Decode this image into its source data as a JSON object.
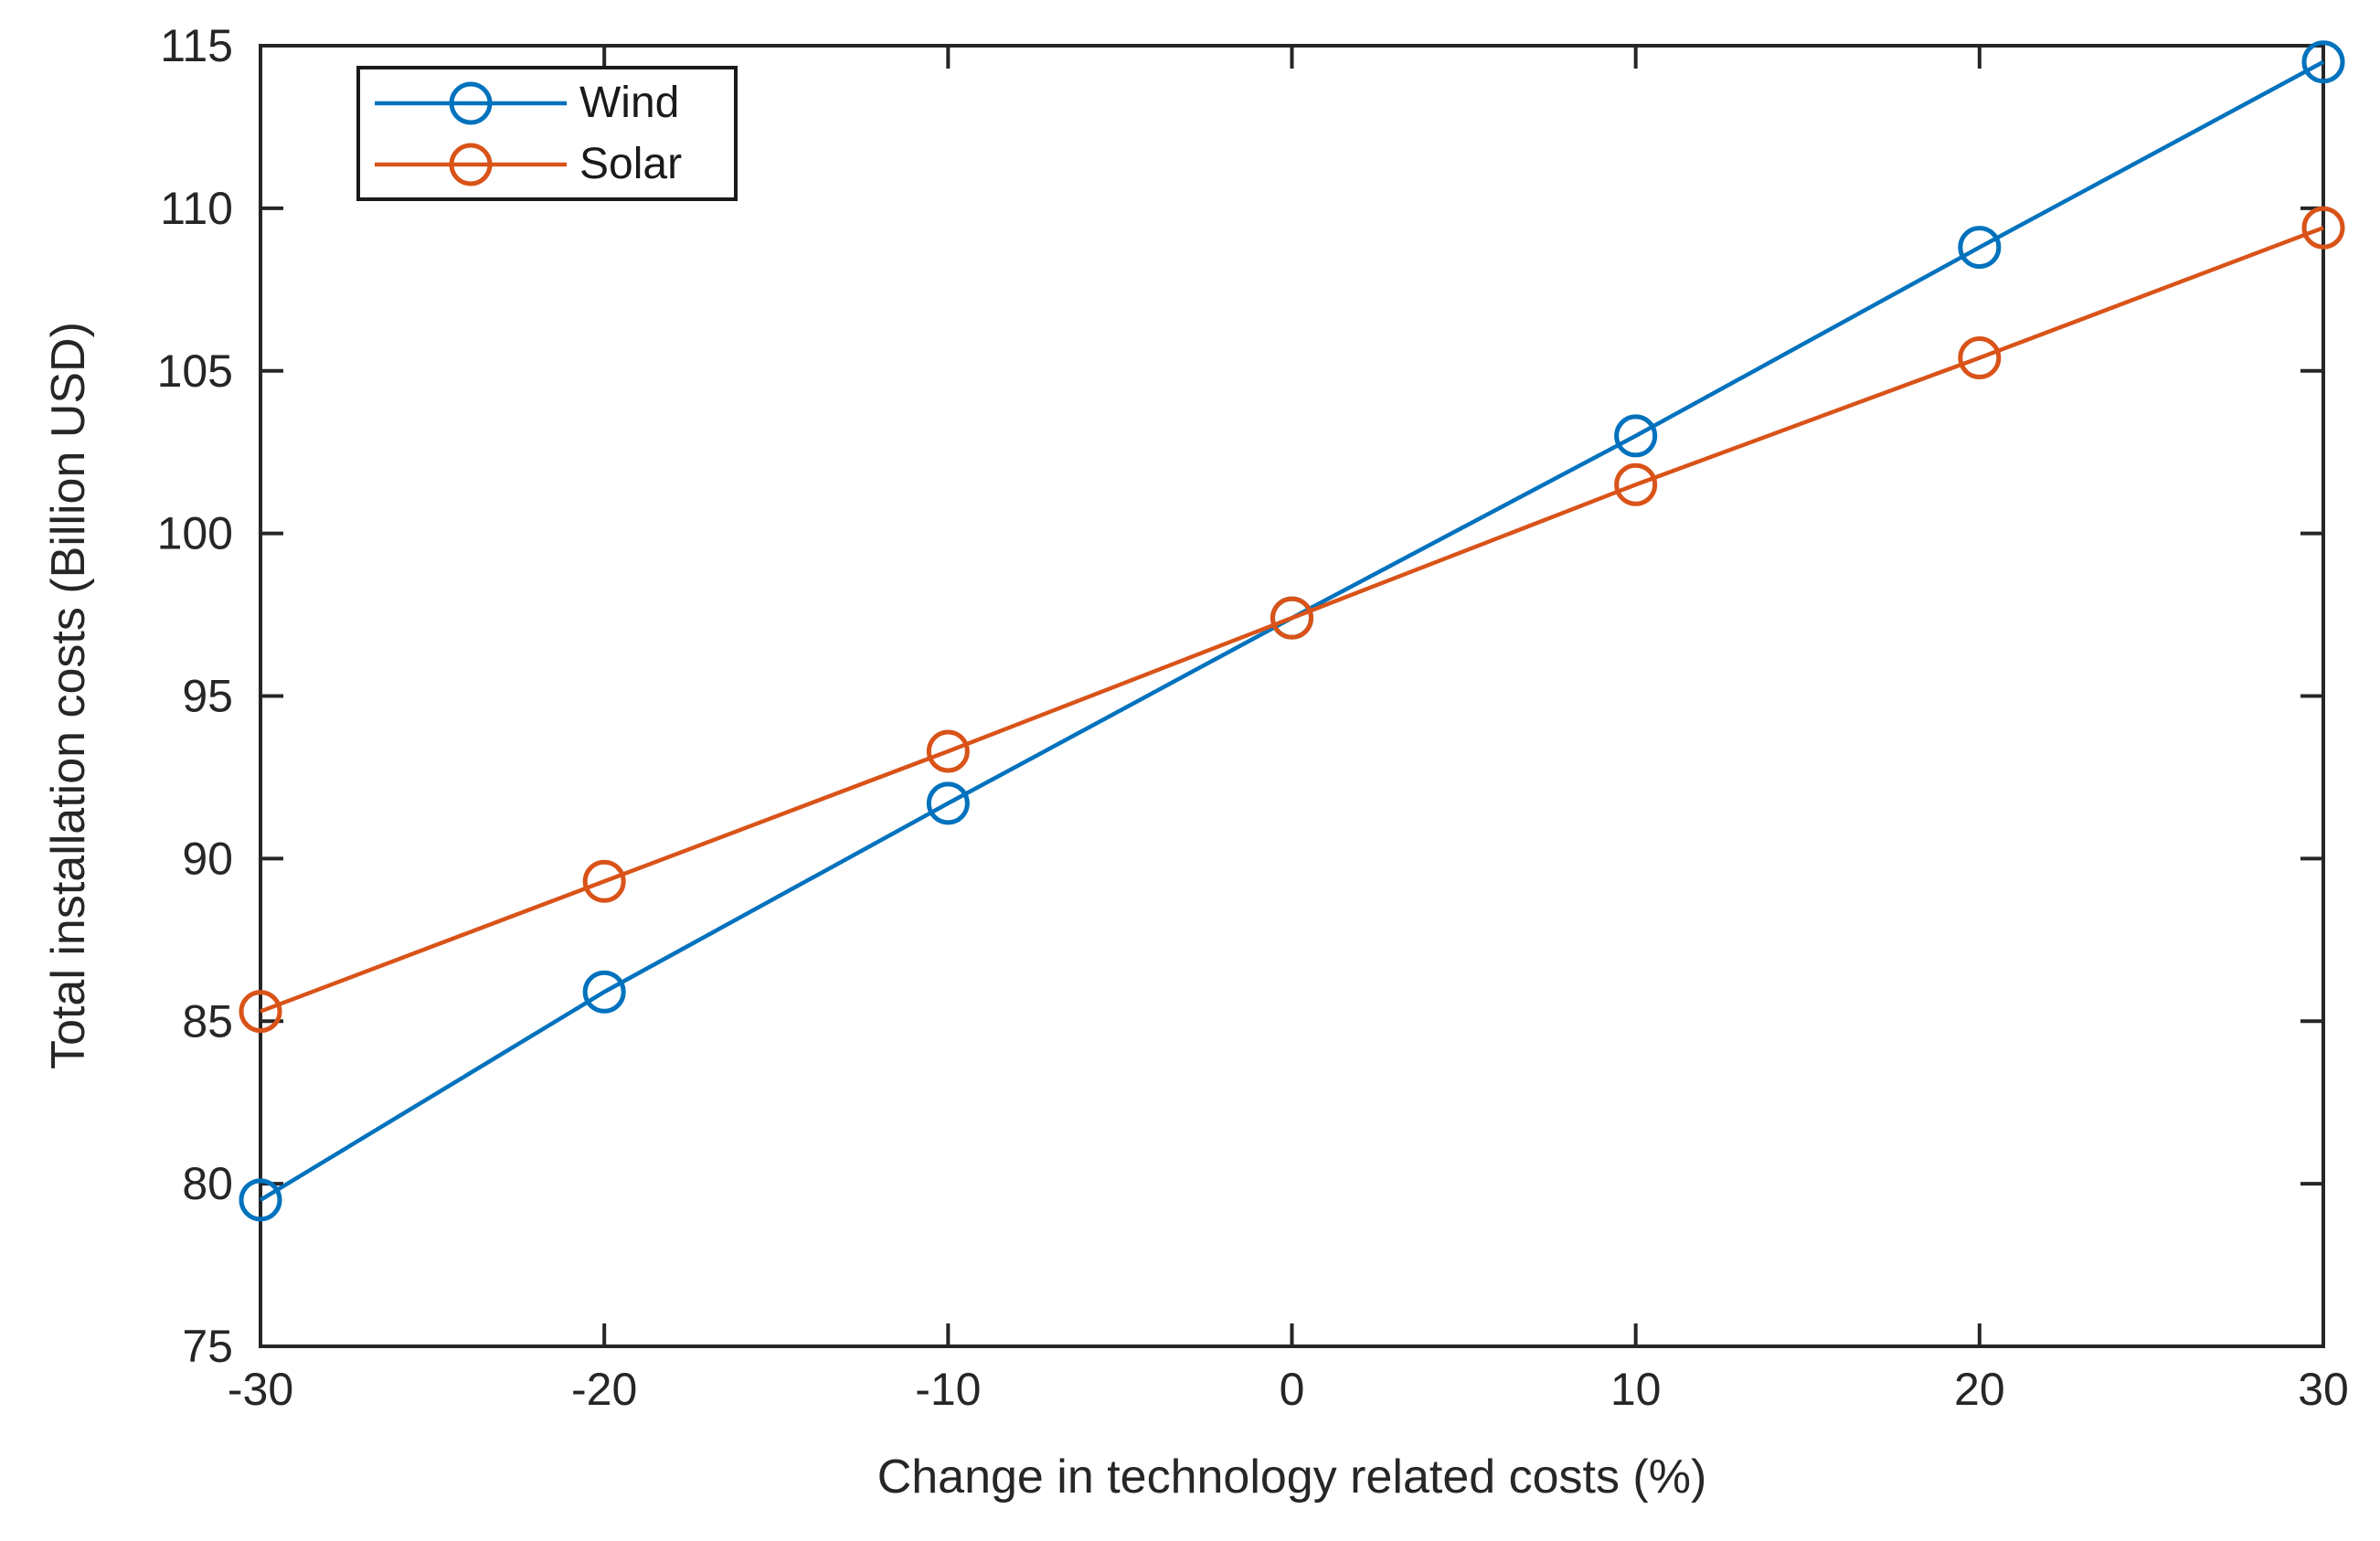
{
  "chart_data": {
    "type": "line",
    "title": "",
    "xlabel": "Change in technology related costs (%)",
    "ylabel": "Total installation costs (Billion USD)",
    "xlim": [
      -30,
      30
    ],
    "ylim": [
      75,
      115
    ],
    "xticks": [
      -30,
      -20,
      -10,
      0,
      10,
      20,
      30
    ],
    "xtick_labels": [
      "-30",
      "-20",
      "-10",
      "0",
      "10",
      "20",
      "30"
    ],
    "yticks": [
      75,
      80,
      85,
      90,
      95,
      100,
      105,
      110,
      115
    ],
    "ytick_labels": [
      "75",
      "80",
      "85",
      "90",
      "95",
      "100",
      "105",
      "110",
      "115"
    ],
    "grid": false,
    "legend_position": "top-left",
    "marker": "open-circle",
    "axis_color": "#262626",
    "x": [
      -30,
      -20,
      -10,
      0,
      10,
      20,
      30
    ],
    "series": [
      {
        "name": "Wind",
        "color": "#0072BD",
        "values": [
          79.5,
          85.9,
          91.7,
          97.4,
          103.0,
          108.8,
          114.5
        ]
      },
      {
        "name": "Solar",
        "color": "#D95319",
        "values": [
          85.3,
          89.3,
          93.3,
          97.4,
          101.5,
          105.4,
          109.4
        ]
      }
    ]
  }
}
